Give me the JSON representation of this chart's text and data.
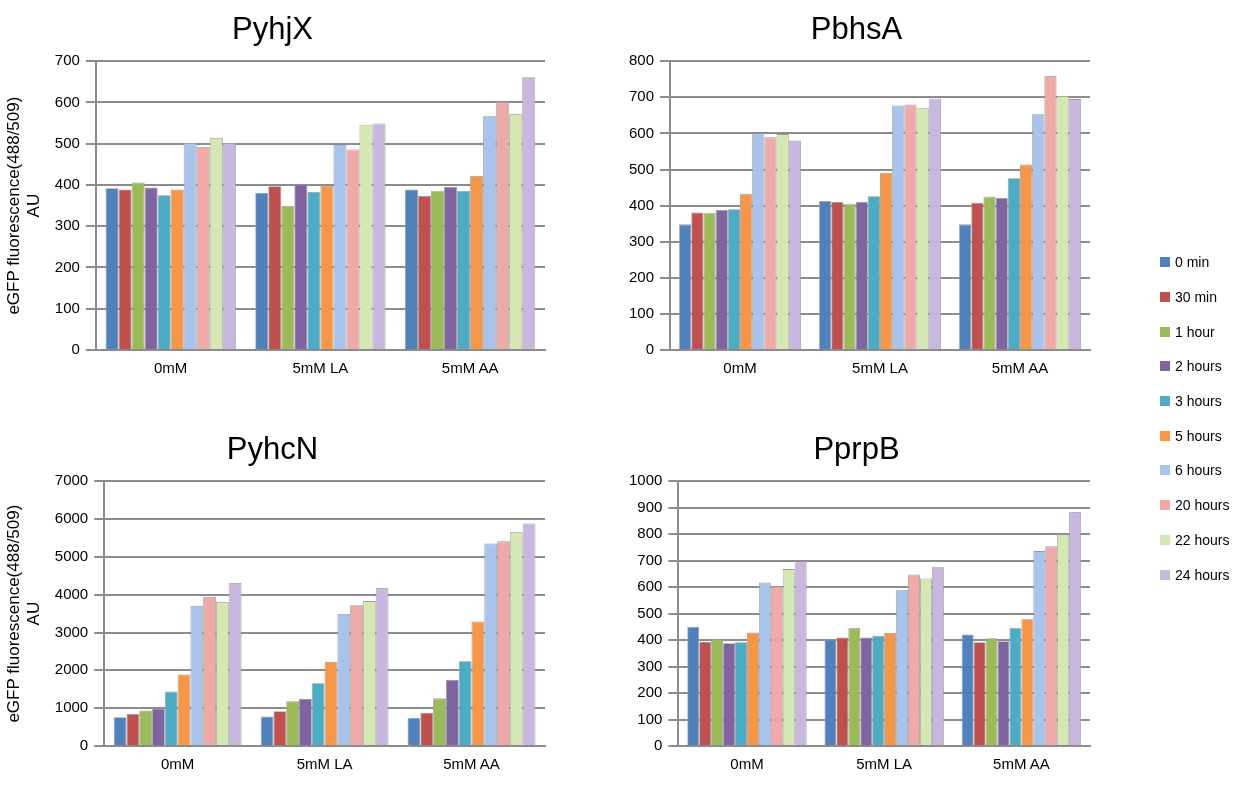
{
  "chart_data": [
    {
      "type": "bar",
      "title": "PyhjX",
      "ylabel": "eGFP fluorescence(488/509)\nAU",
      "categories": [
        "0mM",
        "5mM LA",
        "5mM AA"
      ],
      "ylim": [
        0,
        700
      ],
      "yticks": [
        0,
        100,
        200,
        300,
        400,
        500,
        600,
        700
      ],
      "grid": "y",
      "legend": "right",
      "series": [
        {
          "name": "0 min",
          "color": "#4f81bd",
          "values": [
            392,
            381,
            389
          ]
        },
        {
          "name": "30 min",
          "color": "#c0504d",
          "values": [
            389,
            397,
            374
          ]
        },
        {
          "name": "1 hour",
          "color": "#9bbb59",
          "values": [
            406,
            349,
            386
          ]
        },
        {
          "name": "2 hours",
          "color": "#8064a2",
          "values": [
            394,
            401,
            395
          ]
        },
        {
          "name": "3 hours",
          "color": "#4bacc6",
          "values": [
            375,
            383,
            386
          ]
        },
        {
          "name": "5 hours",
          "color": "#f79646",
          "values": [
            389,
            398,
            422
          ]
        },
        {
          "name": "6 hours",
          "color": "#a9c4ec",
          "values": [
            502,
            497,
            568
          ]
        },
        {
          "name": "20 hours",
          "color": "#efaaa8",
          "values": [
            492,
            486,
            602
          ]
        },
        {
          "name": "22 hours",
          "color": "#d5e8b2",
          "values": [
            514,
            546,
            572
          ]
        },
        {
          "name": "24 hours",
          "color": "#c8b8df",
          "values": [
            502,
            549,
            661
          ]
        }
      ]
    },
    {
      "type": "bar",
      "title": "PbhsA",
      "categories": [
        "0mM",
        "5mM LA",
        "5mM AA"
      ],
      "ylim": [
        0,
        800
      ],
      "yticks": [
        0,
        100,
        200,
        300,
        400,
        500,
        600,
        700,
        800
      ],
      "grid": "y",
      "series": [
        {
          "color": "#4f81bd",
          "values": [
            348,
            413,
            348
          ]
        },
        {
          "color": "#c0504d",
          "values": [
            381,
            410,
            408
          ]
        },
        {
          "color": "#9bbb59",
          "values": [
            380,
            405,
            425
          ]
        },
        {
          "color": "#8064a2",
          "values": [
            388,
            411,
            421
          ]
        },
        {
          "color": "#4bacc6",
          "values": [
            390,
            426,
            476
          ]
        },
        {
          "color": "#f79646",
          "values": [
            433,
            491,
            514
          ]
        },
        {
          "color": "#a9c4ec",
          "values": [
            600,
            677,
            653
          ]
        },
        {
          "color": "#efaaa8",
          "values": [
            589,
            680,
            759
          ]
        },
        {
          "color": "#d5e8b2",
          "values": [
            598,
            670,
            704
          ]
        },
        {
          "color": "#c8b8df",
          "values": [
            580,
            697,
            695
          ]
        }
      ]
    },
    {
      "type": "bar",
      "title": "PyhcN",
      "ylabel": "eGFP fluorescence(488/509)\nAU",
      "categories": [
        "0mM",
        "5mM LA",
        "5mM AA"
      ],
      "ylim": [
        0,
        7000
      ],
      "yticks": [
        0,
        1000,
        2000,
        3000,
        4000,
        5000,
        6000,
        7000
      ],
      "grid": "y",
      "series": [
        {
          "color": "#4f81bd",
          "values": [
            760,
            780,
            750
          ]
        },
        {
          "color": "#c0504d",
          "values": [
            850,
            920,
            880
          ]
        },
        {
          "color": "#9bbb59",
          "values": [
            940,
            1180,
            1260
          ]
        },
        {
          "color": "#8064a2",
          "values": [
            990,
            1240,
            1750
          ]
        },
        {
          "color": "#4bacc6",
          "values": [
            1440,
            1660,
            2240
          ]
        },
        {
          "color": "#f79646",
          "values": [
            1890,
            2220,
            3290
          ]
        },
        {
          "color": "#a9c4ec",
          "values": [
            3700,
            3490,
            5350
          ]
        },
        {
          "color": "#efaaa8",
          "values": [
            3940,
            3720,
            5410
          ]
        },
        {
          "color": "#d5e8b2",
          "values": [
            3810,
            3830,
            5660
          ]
        },
        {
          "color": "#c8b8df",
          "values": [
            4310,
            4180,
            5880
          ]
        }
      ]
    },
    {
      "type": "bar",
      "title": "PprpB",
      "categories": [
        "0mM",
        "5mM LA",
        "5mM AA"
      ],
      "ylim": [
        0,
        1000
      ],
      "yticks": [
        0,
        100,
        200,
        300,
        400,
        500,
        600,
        700,
        800,
        900,
        1000
      ],
      "grid": "y",
      "series": [
        {
          "color": "#4f81bd",
          "values": [
            450,
            401,
            421
          ]
        },
        {
          "color": "#c0504d",
          "values": [
            394,
            410,
            392
          ]
        },
        {
          "color": "#9bbb59",
          "values": [
            403,
            447,
            407
          ]
        },
        {
          "color": "#8064a2",
          "values": [
            388,
            410,
            396
          ]
        },
        {
          "color": "#4bacc6",
          "values": [
            392,
            416,
            447
          ]
        },
        {
          "color": "#f79646",
          "values": [
            429,
            427,
            479
          ]
        },
        {
          "color": "#a9c4ec",
          "values": [
            617,
            590,
            736
          ]
        },
        {
          "color": "#efaaa8",
          "values": [
            603,
            648,
            754
          ]
        },
        {
          "color": "#d5e8b2",
          "values": [
            668,
            633,
            800
          ]
        },
        {
          "color": "#c8b8df",
          "values": [
            697,
            677,
            884
          ]
        }
      ]
    }
  ]
}
